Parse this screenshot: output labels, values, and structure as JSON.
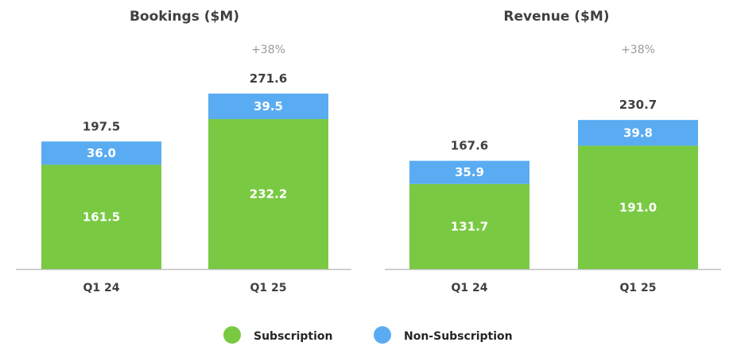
{
  "chart_data": [
    {
      "type": "bar",
      "stacked": true,
      "title": "Bookings ($M)",
      "categories": [
        "Q1 24",
        "Q1 25"
      ],
      "series": [
        {
          "name": "Subscription",
          "values": [
            161.5,
            232.2
          ],
          "labels": [
            "161.5",
            "232.2"
          ],
          "color": "#7ac943"
        },
        {
          "name": "Non-Subscription",
          "values": [
            36.0,
            39.5
          ],
          "labels": [
            "36.0",
            "39.5"
          ],
          "color": "#5aacf2"
        }
      ],
      "totals": [
        197.5,
        271.6
      ],
      "total_labels": [
        "197.5",
        "271.6"
      ],
      "growth_label": "+38%",
      "ylim": [
        0,
        300
      ],
      "grid": false
    },
    {
      "type": "bar",
      "stacked": true,
      "title": "Revenue ($M)",
      "categories": [
        "Q1 24",
        "Q1 25"
      ],
      "series": [
        {
          "name": "Subscription",
          "values": [
            131.7,
            191.0
          ],
          "labels": [
            "131.7",
            "191.0"
          ],
          "color": "#7ac943"
        },
        {
          "name": "Non-Subscription",
          "values": [
            35.9,
            39.8
          ],
          "labels": [
            "35.9",
            "39.8"
          ],
          "color": "#5aacf2"
        }
      ],
      "totals": [
        167.6,
        230.7
      ],
      "total_labels": [
        "167.6",
        "230.7"
      ],
      "growth_label": "+38%",
      "ylim": [
        0,
        300
      ],
      "grid": false
    }
  ],
  "legend": {
    "position": "bottom-center",
    "items": [
      {
        "label": "Subscription",
        "color": "#7ac943"
      },
      {
        "label": "Non-Subscription",
        "color": "#5aacf2"
      }
    ]
  },
  "colors": {
    "text": "#404040",
    "muted": "#9a9a9a",
    "axis": "#bfbfbf"
  }
}
